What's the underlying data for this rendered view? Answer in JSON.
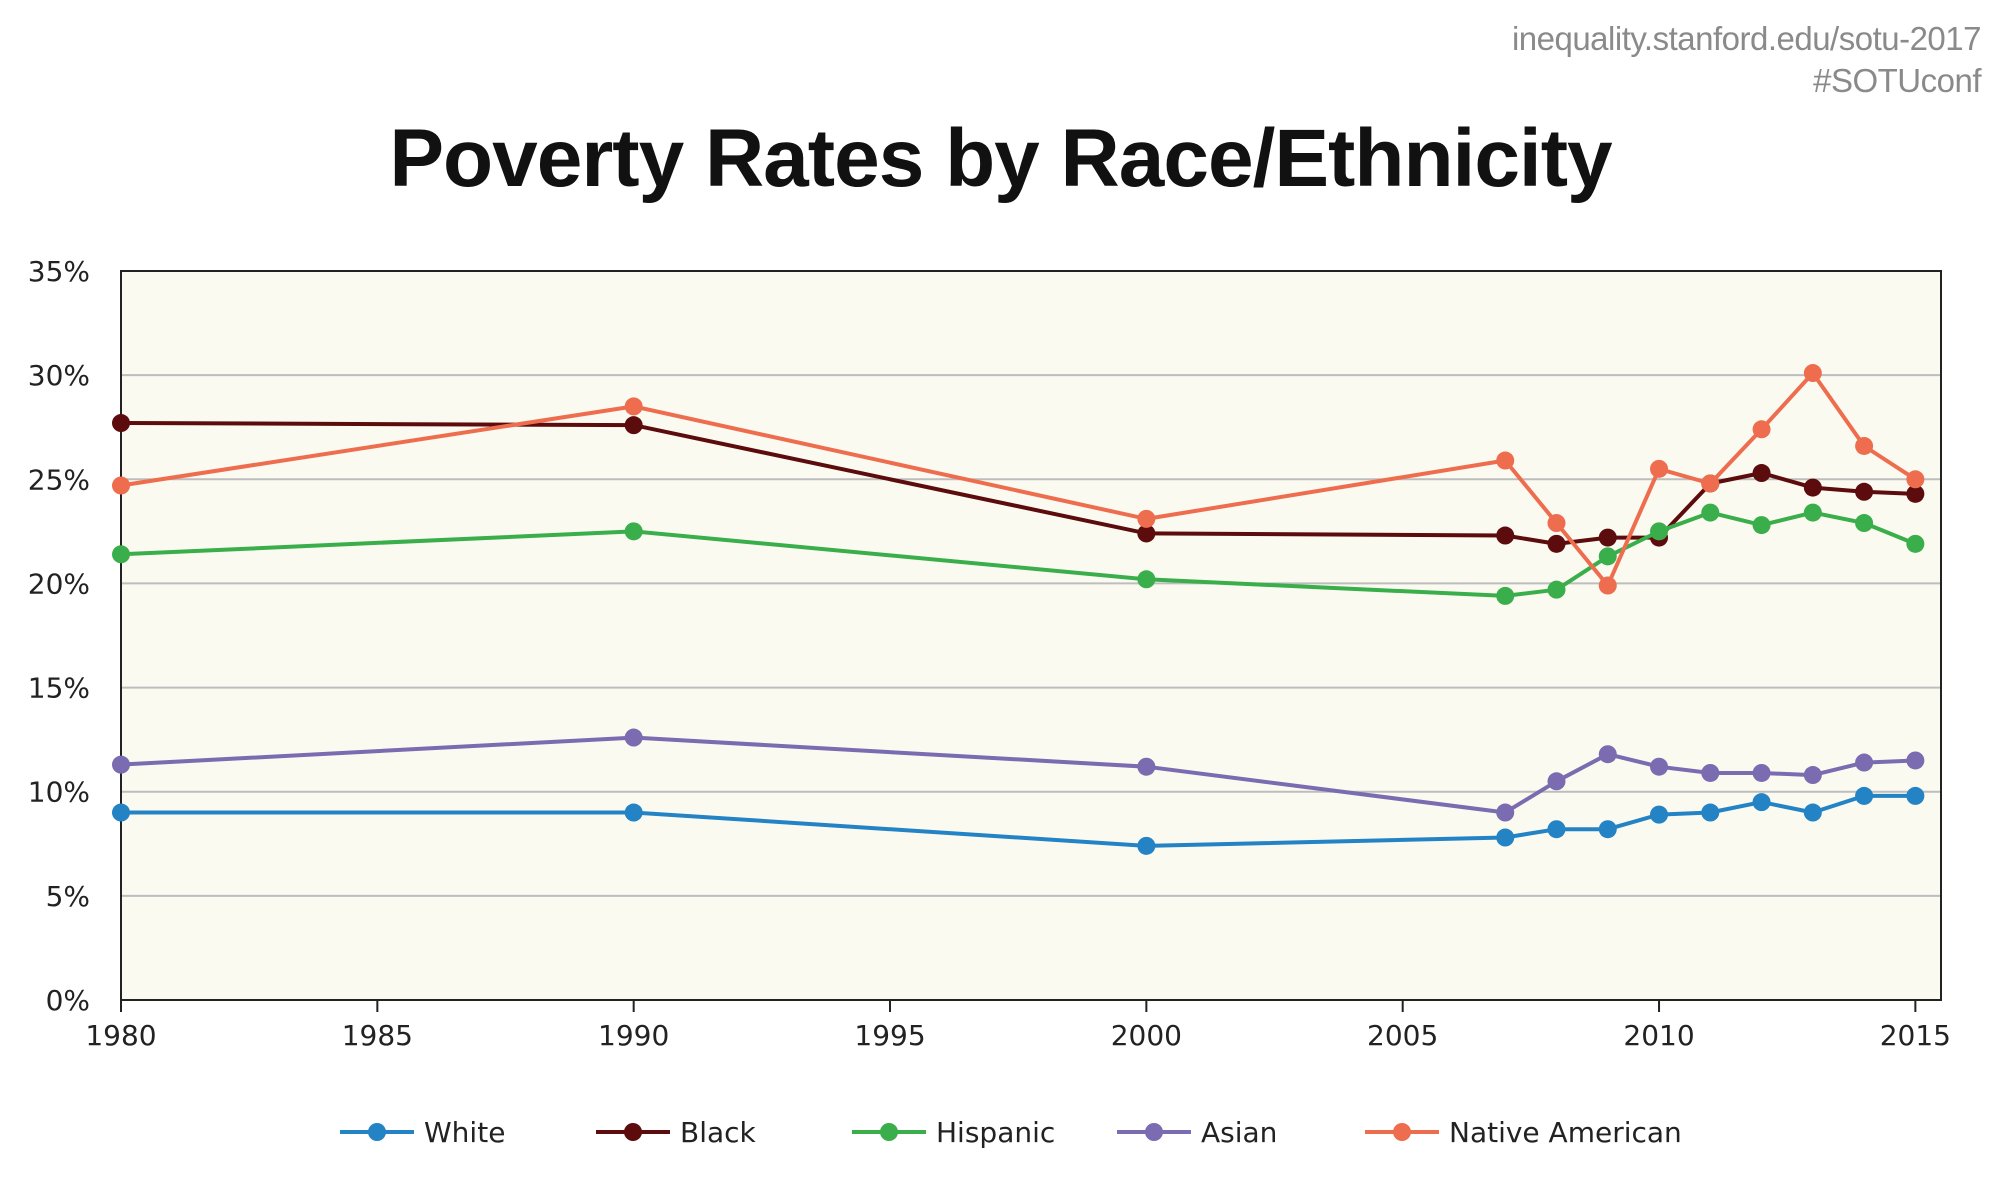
{
  "source": {
    "url": "inequality.stanford.edu/sotu-2017",
    "hashtag": "#SOTUconf"
  },
  "chart_data": {
    "type": "line",
    "title": "Poverty Rates by Race/Ethnicity",
    "xlabel": "",
    "ylabel": "",
    "xlim": [
      1980,
      2015.5
    ],
    "ylim": [
      0,
      35
    ],
    "x_ticks": [
      1980,
      1985,
      1990,
      1995,
      2000,
      2005,
      2010,
      2015
    ],
    "y_ticks": [
      0,
      5,
      10,
      15,
      20,
      25,
      30,
      35
    ],
    "y_tick_labels": [
      "0%",
      "5%",
      "10%",
      "15%",
      "20%",
      "25%",
      "30%",
      "35%"
    ],
    "grid": "horizontal",
    "legend_position": "bottom",
    "plot_background": "#fbfaf1",
    "series": [
      {
        "name": "White",
        "color": "#2383c5",
        "points": [
          [
            1980,
            9.0
          ],
          [
            1990,
            9.0
          ],
          [
            2000,
            7.4
          ],
          [
            2007,
            7.8
          ],
          [
            2008,
            8.2
          ],
          [
            2009,
            8.2
          ],
          [
            2010,
            8.9
          ],
          [
            2011,
            9.0
          ],
          [
            2012,
            9.5
          ],
          [
            2013,
            9.0
          ],
          [
            2014,
            9.8
          ],
          [
            2015,
            9.8
          ]
        ]
      },
      {
        "name": "Black",
        "color": "#5c0c0c",
        "points": [
          [
            1980,
            27.7
          ],
          [
            1990,
            27.6
          ],
          [
            2000,
            22.4
          ],
          [
            2007,
            22.3
          ],
          [
            2008,
            21.9
          ],
          [
            2009,
            22.2
          ],
          [
            2010,
            22.2
          ],
          [
            2011,
            24.8
          ],
          [
            2012,
            25.3
          ],
          [
            2013,
            24.6
          ],
          [
            2014,
            24.4
          ],
          [
            2015,
            24.3
          ]
        ]
      },
      {
        "name": "Hispanic",
        "color": "#3aae4a",
        "points": [
          [
            1980,
            21.4
          ],
          [
            1990,
            22.5
          ],
          [
            2000,
            20.2
          ],
          [
            2007,
            19.4
          ],
          [
            2008,
            19.7
          ],
          [
            2009,
            21.3
          ],
          [
            2010,
            22.5
          ],
          [
            2011,
            23.4
          ],
          [
            2012,
            22.8
          ],
          [
            2013,
            23.4
          ],
          [
            2014,
            22.9
          ],
          [
            2015,
            21.9
          ]
        ]
      },
      {
        "name": "Asian",
        "color": "#7b6bb0",
        "points": [
          [
            1980,
            11.3
          ],
          [
            1990,
            12.6
          ],
          [
            2000,
            11.2
          ],
          [
            2007,
            9.0
          ],
          [
            2008,
            10.5
          ],
          [
            2009,
            11.8
          ],
          [
            2010,
            11.2
          ],
          [
            2011,
            10.9
          ],
          [
            2012,
            10.9
          ],
          [
            2013,
            10.8
          ],
          [
            2014,
            11.4
          ],
          [
            2015,
            11.5
          ]
        ]
      },
      {
        "name": "Native American",
        "color": "#ee6d4e",
        "points": [
          [
            1980,
            24.7
          ],
          [
            1990,
            28.5
          ],
          [
            2000,
            23.1
          ],
          [
            2007,
            25.9
          ],
          [
            2008,
            22.9
          ],
          [
            2009,
            19.9
          ],
          [
            2010,
            25.5
          ],
          [
            2011,
            24.8
          ],
          [
            2012,
            27.4
          ],
          [
            2013,
            30.1
          ],
          [
            2014,
            26.6
          ],
          [
            2015,
            25.0
          ]
        ]
      }
    ]
  }
}
